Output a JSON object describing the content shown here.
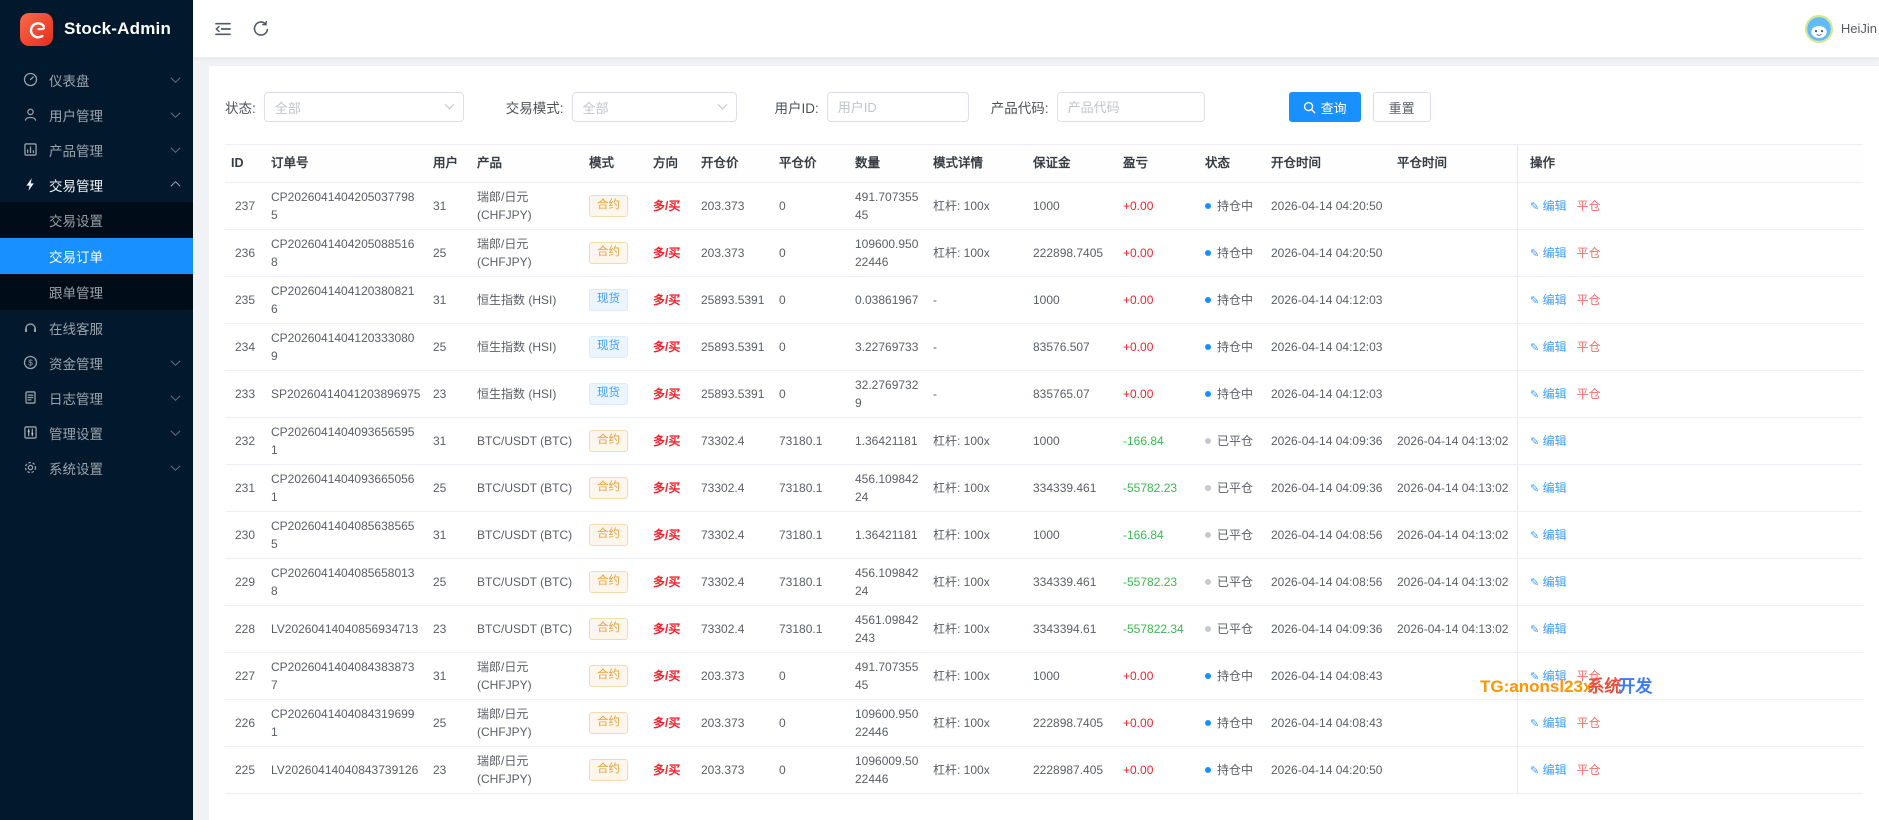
{
  "sidebar": {
    "logo_text": "Stock-Admin",
    "items": [
      {
        "label": "仪表盘",
        "icon": "dashboard-icon",
        "chevron": "down"
      },
      {
        "label": "用户管理",
        "icon": "user-icon",
        "chevron": "down"
      },
      {
        "label": "产品管理",
        "icon": "product-icon",
        "chevron": "down"
      },
      {
        "label": "交易管理",
        "icon": "trade-icon",
        "chevron": "up",
        "open": true
      },
      {
        "label": "交易设置",
        "sub": true
      },
      {
        "label": "交易订单",
        "sub": true,
        "selected": true
      },
      {
        "label": "跟单管理",
        "sub": true
      },
      {
        "label": "在线客服",
        "icon": "service-icon"
      },
      {
        "label": "资金管理",
        "icon": "fund-icon",
        "chevron": "down"
      },
      {
        "label": "日志管理",
        "icon": "log-icon",
        "chevron": "down"
      },
      {
        "label": "管理设置",
        "icon": "admin-icon",
        "chevron": "down"
      },
      {
        "label": "系统设置",
        "icon": "system-icon",
        "chevron": "down"
      }
    ]
  },
  "topbar": {
    "user_name": "HeiJin"
  },
  "filters": {
    "status_label": "状态:",
    "status_value": "全部",
    "mode_label": "交易模式:",
    "mode_value": "全部",
    "user_label": "用户ID:",
    "user_placeholder": "用户ID",
    "code_label": "产品代码:",
    "code_placeholder": "产品代码",
    "search_label": "查询",
    "reset_label": "重置"
  },
  "table": {
    "columns": [
      "ID",
      "订单号",
      "用户",
      "产品",
      "模式",
      "方向",
      "开仓价",
      "平仓价",
      "数量",
      "模式详情",
      "保证金",
      "盈亏",
      "状态",
      "开仓时间",
      "平仓时间",
      "操作"
    ],
    "action_edit": "编辑",
    "action_close": "平仓",
    "rows": [
      {
        "id": "237",
        "order_no": "CP20260414042050377985",
        "user": "31",
        "product": "瑞郎/日元 (CHFJPY)",
        "mode": "合约",
        "mode_type": "contract",
        "direction": "多/买",
        "open_price": "203.373",
        "close_price": "0",
        "quantity": "491.70735545",
        "detail": "杠杆: 100x",
        "margin": "1000",
        "pnl": "+0.00",
        "pnl_color": "red",
        "status": "持仓中",
        "status_type": "open",
        "open_time": "2026-04-14 04:20:50",
        "close_time": "",
        "can_close": true
      },
      {
        "id": "236",
        "order_no": "CP20260414042050885168",
        "user": "25",
        "product": "瑞郎/日元 (CHFJPY)",
        "mode": "合约",
        "mode_type": "contract",
        "direction": "多/买",
        "open_price": "203.373",
        "close_price": "0",
        "quantity": "109600.95022446",
        "detail": "杠杆: 100x",
        "margin": "222898.7405",
        "pnl": "+0.00",
        "pnl_color": "red",
        "status": "持仓中",
        "status_type": "open",
        "open_time": "2026-04-14 04:20:50",
        "close_time": "",
        "can_close": true
      },
      {
        "id": "235",
        "order_no": "CP20260414041203808216",
        "user": "31",
        "product": "恒生指数 (HSI)",
        "mode": "现货",
        "mode_type": "spot",
        "direction": "多/买",
        "open_price": "25893.5391",
        "close_price": "0",
        "quantity": "0.03861967",
        "detail": "-",
        "margin": "1000",
        "pnl": "+0.00",
        "pnl_color": "red",
        "status": "持仓中",
        "status_type": "open",
        "open_time": "2026-04-14 04:12:03",
        "close_time": "",
        "can_close": true
      },
      {
        "id": "234",
        "order_no": "CP20260414041203330809",
        "user": "25",
        "product": "恒生指数 (HSI)",
        "mode": "现货",
        "mode_type": "spot",
        "direction": "多/买",
        "open_price": "25893.5391",
        "close_price": "0",
        "quantity": "3.22769733",
        "detail": "-",
        "margin": "83576.507",
        "pnl": "+0.00",
        "pnl_color": "red",
        "status": "持仓中",
        "status_type": "open",
        "open_time": "2026-04-14 04:12:03",
        "close_time": "",
        "can_close": true
      },
      {
        "id": "233",
        "order_no": "SP20260414041203896975",
        "user": "23",
        "product": "恒生指数 (HSI)",
        "mode": "现货",
        "mode_type": "spot",
        "direction": "多/买",
        "open_price": "25893.5391",
        "close_price": "0",
        "quantity": "32.27697329",
        "detail": "-",
        "margin": "835765.07",
        "pnl": "+0.00",
        "pnl_color": "red",
        "status": "持仓中",
        "status_type": "open",
        "open_time": "2026-04-14 04:12:03",
        "close_time": "",
        "can_close": true
      },
      {
        "id": "232",
        "order_no": "CP20260414040936565951",
        "user": "31",
        "product": "BTC/USDT (BTC)",
        "mode": "合约",
        "mode_type": "contract",
        "direction": "多/买",
        "open_price": "73302.4",
        "close_price": "73180.1",
        "quantity": "1.36421181",
        "detail": "杠杆: 100x",
        "margin": "1000",
        "pnl": "-166.84",
        "pnl_color": "green",
        "status": "已平仓",
        "status_type": "closed",
        "open_time": "2026-04-14 04:09:36",
        "close_time": "2026-04-14 04:13:02",
        "can_close": false
      },
      {
        "id": "231",
        "order_no": "CP20260414040936650561",
        "user": "25",
        "product": "BTC/USDT (BTC)",
        "mode": "合约",
        "mode_type": "contract",
        "direction": "多/买",
        "open_price": "73302.4",
        "close_price": "73180.1",
        "quantity": "456.10984224",
        "detail": "杠杆: 100x",
        "margin": "334339.461",
        "pnl": "-55782.23",
        "pnl_color": "green",
        "status": "已平仓",
        "status_type": "closed",
        "open_time": "2026-04-14 04:09:36",
        "close_time": "2026-04-14 04:13:02",
        "can_close": false
      },
      {
        "id": "230",
        "order_no": "CP20260414040856385655",
        "user": "31",
        "product": "BTC/USDT (BTC)",
        "mode": "合约",
        "mode_type": "contract",
        "direction": "多/买",
        "open_price": "73302.4",
        "close_price": "73180.1",
        "quantity": "1.36421181",
        "detail": "杠杆: 100x",
        "margin": "1000",
        "pnl": "-166.84",
        "pnl_color": "green",
        "status": "已平仓",
        "status_type": "closed",
        "open_time": "2026-04-14 04:08:56",
        "close_time": "2026-04-14 04:13:02",
        "can_close": false
      },
      {
        "id": "229",
        "order_no": "CP20260414040856580138",
        "user": "25",
        "product": "BTC/USDT (BTC)",
        "mode": "合约",
        "mode_type": "contract",
        "direction": "多/买",
        "open_price": "73302.4",
        "close_price": "73180.1",
        "quantity": "456.10984224",
        "detail": "杠杆: 100x",
        "margin": "334339.461",
        "pnl": "-55782.23",
        "pnl_color": "green",
        "status": "已平仓",
        "status_type": "closed",
        "open_time": "2026-04-14 04:08:56",
        "close_time": "2026-04-14 04:13:02",
        "can_close": false
      },
      {
        "id": "228",
        "order_no": "LV20260414040856934713",
        "user": "23",
        "product": "BTC/USDT (BTC)",
        "mode": "合约",
        "mode_type": "contract",
        "direction": "多/买",
        "open_price": "73302.4",
        "close_price": "73180.1",
        "quantity": "4561.09842243",
        "detail": "杠杆: 100x",
        "margin": "3343394.61",
        "pnl": "-557822.34",
        "pnl_color": "green",
        "status": "已平仓",
        "status_type": "closed",
        "open_time": "2026-04-14 04:09:36",
        "close_time": "2026-04-14 04:13:02",
        "can_close": false
      },
      {
        "id": "227",
        "order_no": "CP20260414040843838737",
        "user": "31",
        "product": "瑞郎/日元 (CHFJPY)",
        "mode": "合约",
        "mode_type": "contract",
        "direction": "多/买",
        "open_price": "203.373",
        "close_price": "0",
        "quantity": "491.70735545",
        "detail": "杠杆: 100x",
        "margin": "1000",
        "pnl": "+0.00",
        "pnl_color": "red",
        "status": "持仓中",
        "status_type": "open",
        "open_time": "2026-04-14 04:08:43",
        "close_time": "",
        "can_close": true
      },
      {
        "id": "226",
        "order_no": "CP20260414040843196991",
        "user": "25",
        "product": "瑞郎/日元 (CHFJPY)",
        "mode": "合约",
        "mode_type": "contract",
        "direction": "多/买",
        "open_price": "203.373",
        "close_price": "0",
        "quantity": "109600.95022446",
        "detail": "杠杆: 100x",
        "margin": "222898.7405",
        "pnl": "+0.00",
        "pnl_color": "red",
        "status": "持仓中",
        "status_type": "open",
        "open_time": "2026-04-14 04:08:43",
        "close_time": "",
        "can_close": true
      },
      {
        "id": "225",
        "order_no": "LV20260414040843739126",
        "user": "23",
        "product": "瑞郎/日元 (CHFJPY)",
        "mode": "合约",
        "mode_type": "contract",
        "direction": "多/买",
        "open_price": "203.373",
        "close_price": "0",
        "quantity": "1096009.5022446",
        "detail": "杠杆: 100x",
        "margin": "2228987.405",
        "pnl": "+0.00",
        "pnl_color": "red",
        "status": "持仓中",
        "status_type": "open",
        "open_time": "2026-04-14 04:20:50",
        "close_time": "",
        "can_close": true
      }
    ]
  },
  "watermark": {
    "part1": "TG:anonsl23x",
    "part2": "系统",
    "part3": "开发"
  },
  "colors": {
    "accent": "#1890ff",
    "sidebar_bg": "#02182c",
    "submenu_bg": "#000c17",
    "red": "#f5222d",
    "green": "#3cb950",
    "tag_orange": "#e6a23c",
    "tag_orange_bg": "#fdf6ec",
    "tag_orange_border": "#f5dab1",
    "tag_blue": "#409eff",
    "tag_blue_bg": "#ecf5ff",
    "tag_blue_border": "#d9ecff",
    "link_edit": "#409eff",
    "link_close": "#f56c6c",
    "dot_open": "#1890ff",
    "dot_closed": "#c5c8ce",
    "wm_orange": "#ff9500",
    "wm_red": "#e8503a",
    "wm_blue": "#3d7bf5"
  }
}
